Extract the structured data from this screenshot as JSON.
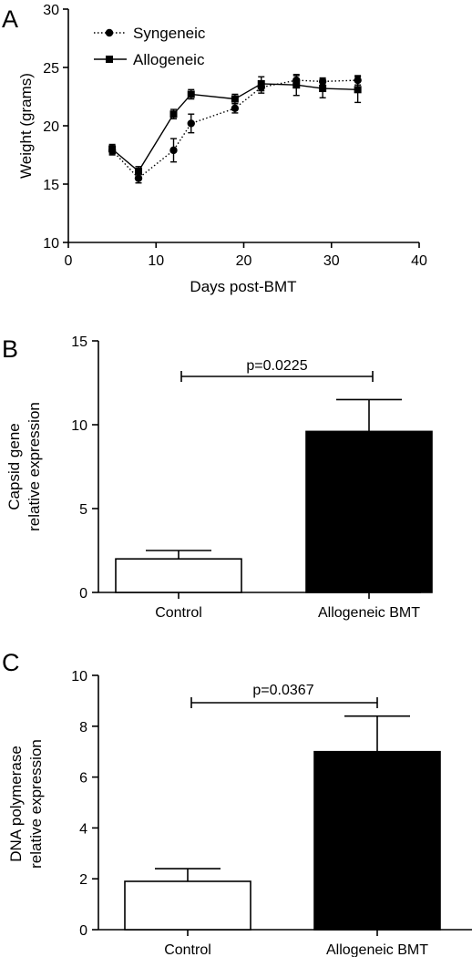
{
  "chart_data": [
    {
      "panel": "A",
      "type": "line",
      "xlabel": "Days post-BMT",
      "ylabel": "Weight (grams)",
      "xlim": [
        0,
        40
      ],
      "ylim": [
        10,
        30
      ],
      "xticks": [
        0,
        10,
        20,
        30,
        40
      ],
      "yticks": [
        10,
        15,
        20,
        25,
        30
      ],
      "grid": false,
      "legend": "top-left",
      "series": [
        {
          "name": "Syngeneic",
          "marker": "circle",
          "line": "dotted",
          "x": [
            5,
            8,
            12,
            14,
            19,
            22,
            26,
            29,
            33
          ],
          "y": [
            17.9,
            15.5,
            17.9,
            20.2,
            21.5,
            23.3,
            23.9,
            23.8,
            23.9
          ],
          "err": [
            0.4,
            0.4,
            1.0,
            0.8,
            0.4,
            0.5,
            0.4,
            0.3,
            0.4
          ]
        },
        {
          "name": "Allogeneic",
          "marker": "square",
          "line": "solid",
          "x": [
            5,
            8,
            12,
            14,
            19,
            22,
            26,
            29,
            33
          ],
          "y": [
            18.0,
            16.1,
            21.0,
            22.7,
            22.3,
            23.6,
            23.5,
            23.2,
            23.1
          ],
          "err": [
            0.4,
            0.4,
            0.4,
            0.4,
            0.4,
            0.6,
            0.9,
            0.8,
            1.1
          ]
        }
      ]
    },
    {
      "panel": "B",
      "type": "bar",
      "ylabel_lines": [
        "Capsid gene",
        "relative expression"
      ],
      "categories": [
        "Control",
        "Allogeneic BMT"
      ],
      "values": [
        2.0,
        9.6
      ],
      "errors": [
        0.5,
        1.9
      ],
      "bar_colors": [
        "#ffffff",
        "#000000"
      ],
      "ylim": [
        0,
        15
      ],
      "yticks": [
        0,
        5,
        10,
        15
      ],
      "annotation": "p=0.0225"
    },
    {
      "panel": "C",
      "type": "bar",
      "ylabel_lines": [
        "DNA polymerase",
        "relative expression"
      ],
      "categories": [
        "Control",
        "Allogeneic BMT"
      ],
      "values": [
        1.9,
        7.0
      ],
      "errors": [
        0.5,
        1.4
      ],
      "bar_colors": [
        "#ffffff",
        "#000000"
      ],
      "ylim": [
        0,
        10
      ],
      "yticks": [
        0,
        2,
        4,
        6,
        8,
        10
      ],
      "annotation": "p=0.0367"
    }
  ]
}
